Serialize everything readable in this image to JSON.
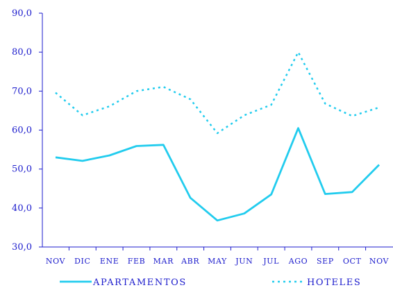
{
  "colors": {
    "axis": "#1a1acc",
    "label": "#1a1acc",
    "series_line": "#22ccee"
  },
  "chart_data": {
    "type": "line",
    "title": "",
    "xlabel": "",
    "ylabel": "",
    "categories": [
      "NOV",
      "DIC",
      "ENE",
      "FEB",
      "MAR",
      "ABR",
      "MAY",
      "JUN",
      "JUL",
      "AGO",
      "SEP",
      "OCT",
      "NOV"
    ],
    "ylim": [
      30,
      90
    ],
    "y_ticks": [
      "30,0",
      "40,0",
      "50,0",
      "60,0",
      "70,0",
      "80,0",
      "90,0"
    ],
    "grid": false,
    "legend_position": "bottom",
    "series": [
      {
        "name": "APARTAMENTOS",
        "style": "solid",
        "values": [
          53.0,
          52.1,
          53.5,
          55.9,
          56.2,
          42.6,
          36.8,
          38.6,
          43.5,
          60.5,
          43.6,
          44.1,
          51.1
        ]
      },
      {
        "name": "HOTELES",
        "style": "dotted",
        "values": [
          69.6,
          63.8,
          66.1,
          70.0,
          71.1,
          67.9,
          59.2,
          63.8,
          66.5,
          80.0,
          66.8,
          63.6,
          65.8
        ]
      }
    ]
  }
}
